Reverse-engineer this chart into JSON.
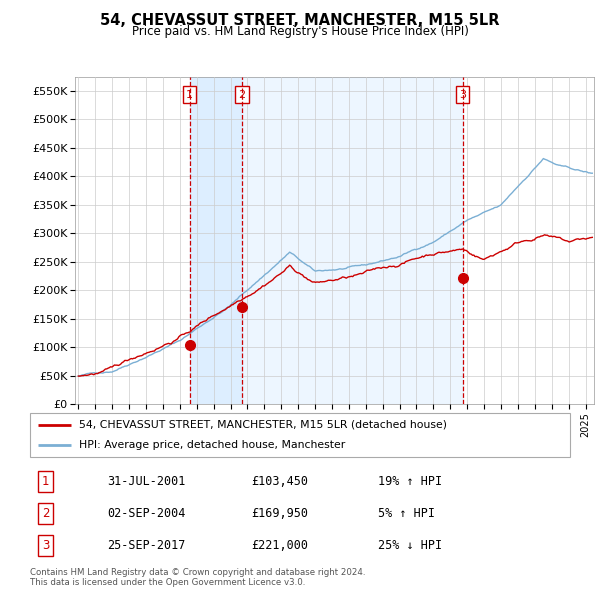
{
  "title": "54, CHEVASSUT STREET, MANCHESTER, M15 5LR",
  "subtitle": "Price paid vs. HM Land Registry's House Price Index (HPI)",
  "ylabel_ticks": [
    "£0",
    "£50K",
    "£100K",
    "£150K",
    "£200K",
    "£250K",
    "£300K",
    "£350K",
    "£400K",
    "£450K",
    "£500K",
    "£550K"
  ],
  "ytick_values": [
    0,
    50000,
    100000,
    150000,
    200000,
    250000,
    300000,
    350000,
    400000,
    450000,
    500000,
    550000
  ],
  "ylim": [
    0,
    575000
  ],
  "xlim_start": 1994.8,
  "xlim_end": 2025.5,
  "sale_dates": [
    2001.58,
    2004.67,
    2017.73
  ],
  "sale_prices": [
    103450,
    169950,
    221000
  ],
  "sale_labels": [
    "1",
    "2",
    "3"
  ],
  "legend_line1": "54, CHEVASSUT STREET, MANCHESTER, M15 5LR (detached house)",
  "legend_line2": "HPI: Average price, detached house, Manchester",
  "table_data": [
    {
      "label": "1",
      "date": "31-JUL-2001",
      "price": "£103,450",
      "change": "19% ↑ HPI"
    },
    {
      "label": "2",
      "date": "02-SEP-2004",
      "price": "£169,950",
      "change": "5% ↑ HPI"
    },
    {
      "label": "3",
      "date": "25-SEP-2017",
      "price": "£221,000",
      "change": "25% ↓ HPI"
    }
  ],
  "footer": "Contains HM Land Registry data © Crown copyright and database right 2024.\nThis data is licensed under the Open Government Licence v3.0.",
  "hpi_color": "#7bafd4",
  "price_color": "#cc0000",
  "vline_color": "#cc0000",
  "shade_color": "#ddeeff",
  "bg_color": "#ffffff",
  "grid_color": "#cccccc",
  "title_color": "#000000"
}
